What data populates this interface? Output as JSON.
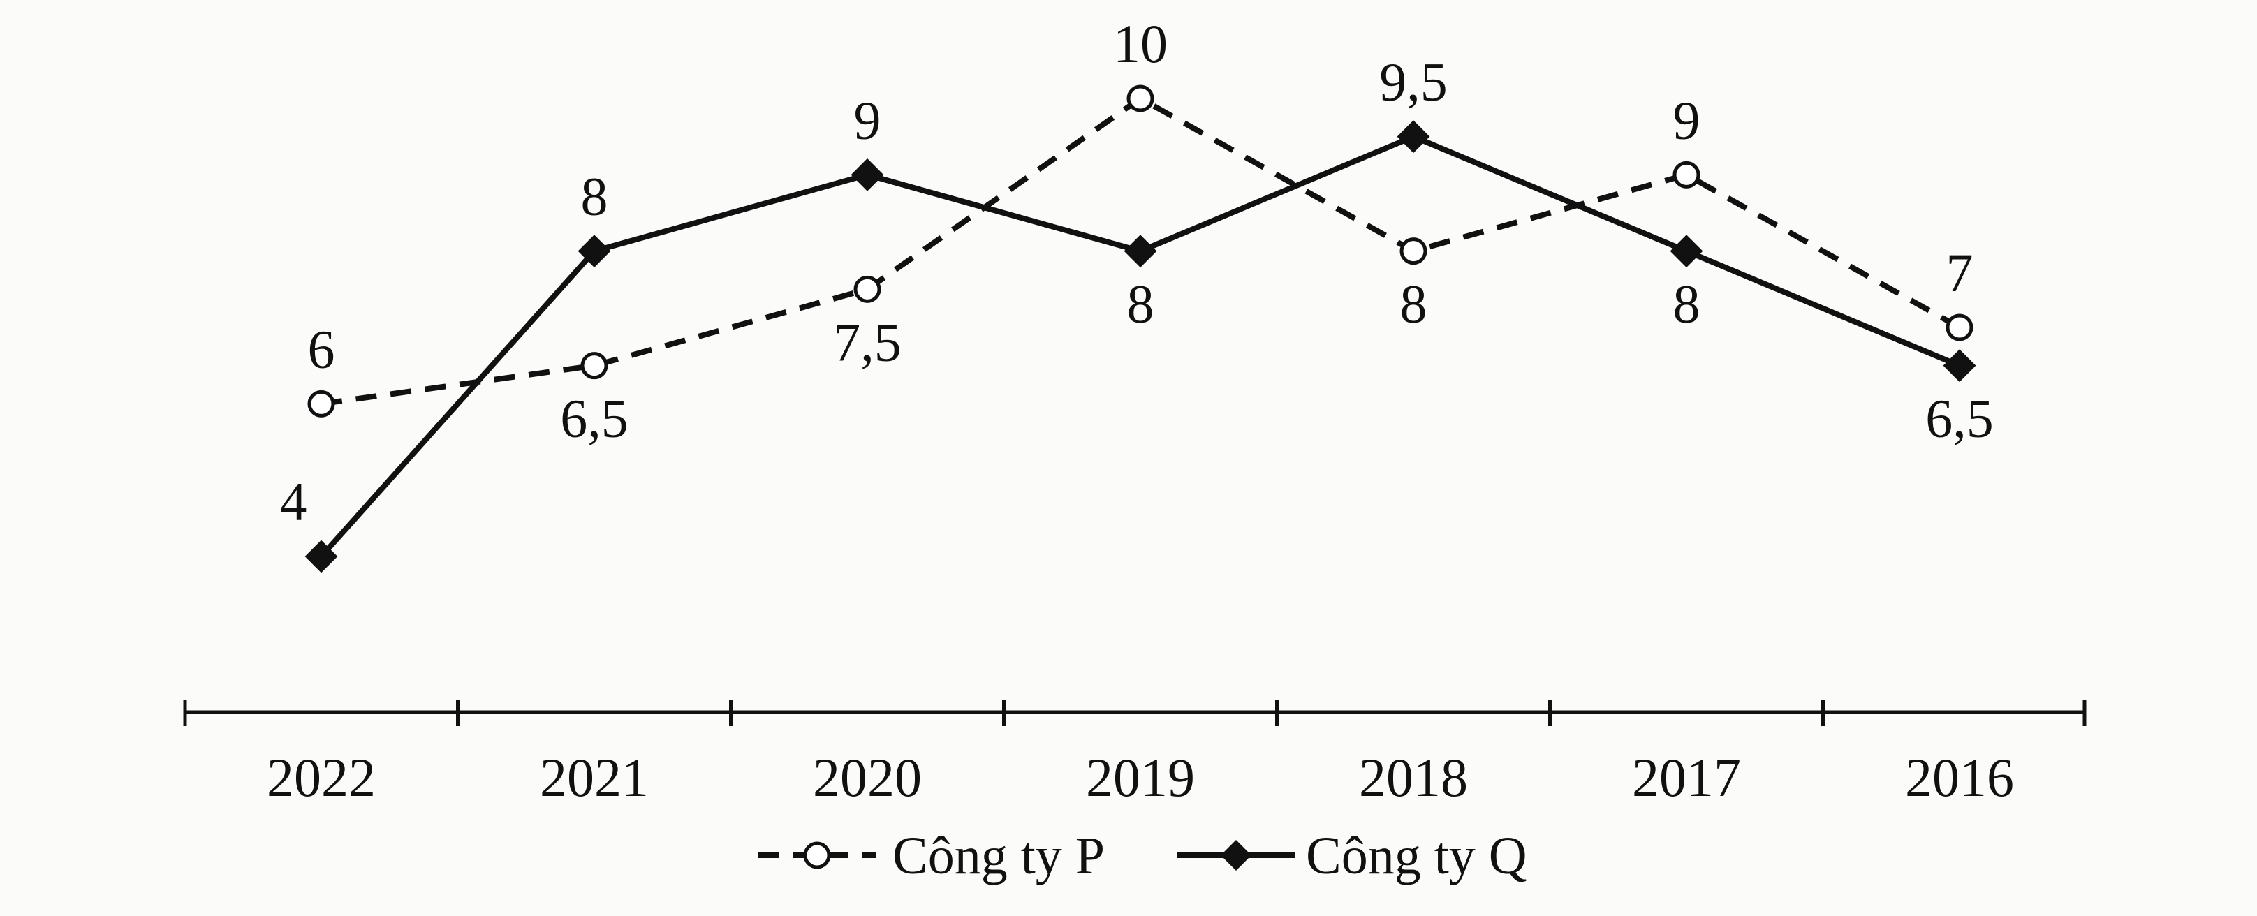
{
  "chart_data": {
    "type": "line",
    "categories": [
      "2022",
      "2021",
      "2020",
      "2019",
      "2018",
      "2017",
      "2016"
    ],
    "series": [
      {
        "name": "Công ty P",
        "values": [
          6,
          6.5,
          7.5,
          10,
          8,
          9,
          7
        ],
        "labels": [
          "6",
          "6,5",
          "7,5",
          "10",
          "8",
          "9",
          "7"
        ],
        "line_style": "dashed",
        "marker": "open-circle",
        "color": "#111111"
      },
      {
        "name": "Công ty Q",
        "values": [
          4,
          8,
          9,
          8,
          9.5,
          8,
          6.5
        ],
        "labels": [
          "4",
          "8",
          "9",
          "8",
          "9,5",
          "8",
          "6,5"
        ],
        "line_style": "solid",
        "marker": "filled-diamond",
        "color": "#111111"
      }
    ],
    "title": "",
    "xlabel": "",
    "ylabel": "",
    "y_axis_visible": false,
    "grid": false,
    "legend_position": "bottom-center"
  }
}
